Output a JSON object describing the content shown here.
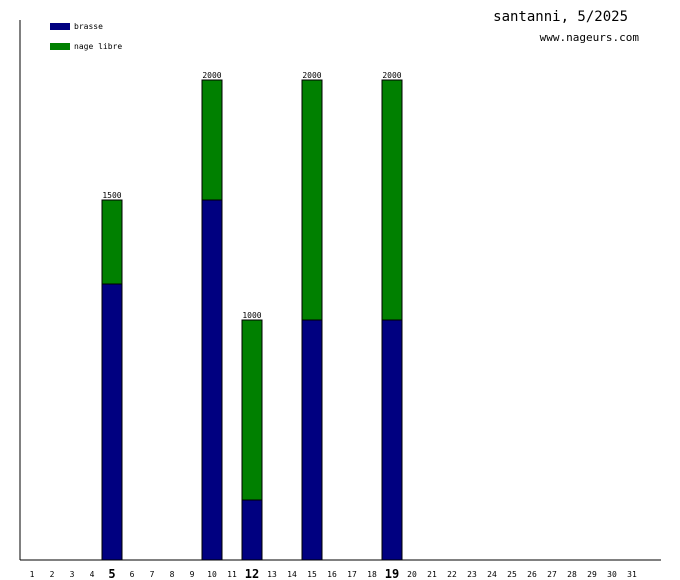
{
  "chart_data": {
    "type": "bar",
    "stacked": true,
    "title": "santanni, 5/2025",
    "subtitle": "www.nageurs.com",
    "categories": [
      "1",
      "2",
      "3",
      "4",
      "5",
      "6",
      "7",
      "8",
      "9",
      "10",
      "11",
      "12",
      "13",
      "14",
      "15",
      "16",
      "17",
      "18",
      "19",
      "20",
      "21",
      "22",
      "23",
      "24",
      "25",
      "26",
      "27",
      "28",
      "29",
      "30",
      "31"
    ],
    "highlighted_categories": [
      "5",
      "12",
      "19"
    ],
    "series": [
      {
        "name": "brasse",
        "color": "#000080",
        "values": [
          0,
          0,
          0,
          0,
          1150,
          0,
          0,
          0,
          0,
          1500,
          0,
          250,
          0,
          0,
          1000,
          0,
          0,
          0,
          1000,
          0,
          0,
          0,
          0,
          0,
          0,
          0,
          0,
          0,
          0,
          0,
          0
        ]
      },
      {
        "name": "nage libre",
        "color": "#008000",
        "values": [
          0,
          0,
          0,
          0,
          350,
          0,
          0,
          0,
          0,
          500,
          0,
          750,
          0,
          0,
          1000,
          0,
          0,
          0,
          1000,
          0,
          0,
          0,
          0,
          0,
          0,
          0,
          0,
          0,
          0,
          0,
          0
        ]
      }
    ],
    "totals": [
      {
        "category": "5",
        "label": "1500"
      },
      {
        "category": "10",
        "label": "2000"
      },
      {
        "category": "12",
        "label": "1000"
      },
      {
        "category": "15",
        "label": "2000"
      },
      {
        "category": "19",
        "label": "2000"
      }
    ],
    "ylim": [
      0,
      2000
    ],
    "grid": false,
    "legend_position": "top-left"
  }
}
